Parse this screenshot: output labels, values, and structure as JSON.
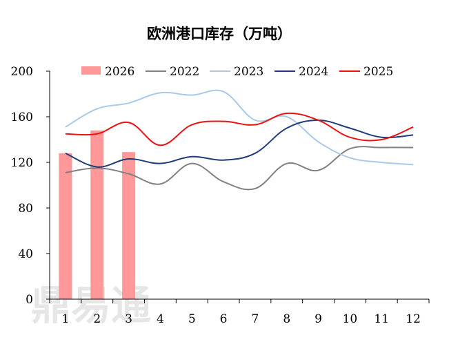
{
  "chart_data": {
    "type": "line",
    "title": "欧洲港口库存（万吨）",
    "categories": [
      "1",
      "2",
      "3",
      "4",
      "5",
      "6",
      "7",
      "8",
      "9",
      "10",
      "11",
      "12"
    ],
    "ylim": [
      0,
      200
    ],
    "yticks": [
      "0",
      "40",
      "80",
      "120",
      "160",
      "200"
    ],
    "grid": false,
    "legend_position": "top",
    "watermark": "鼎易通",
    "bar_series": {
      "name": "2026",
      "color": "#ff9999",
      "values": [
        128,
        148,
        129
      ]
    },
    "series": [
      {
        "name": "2022",
        "color": "#808080",
        "values": [
          111,
          115,
          110,
          101,
          119,
          103,
          97,
          119,
          113,
          132,
          133,
          133
        ]
      },
      {
        "name": "2023",
        "color": "#a9c9e8",
        "values": [
          151,
          167,
          172,
          181,
          179,
          182,
          157,
          160,
          138,
          124,
          120,
          118
        ]
      },
      {
        "name": "2024",
        "color": "#1f3c7a",
        "values": [
          128,
          116,
          123,
          119,
          125,
          122,
          128,
          150,
          157,
          150,
          142,
          144
        ]
      },
      {
        "name": "2025",
        "color": "#ee1111",
        "values": [
          145,
          145,
          155,
          135,
          153,
          156,
          153,
          163,
          157,
          142,
          140,
          151
        ]
      }
    ]
  }
}
